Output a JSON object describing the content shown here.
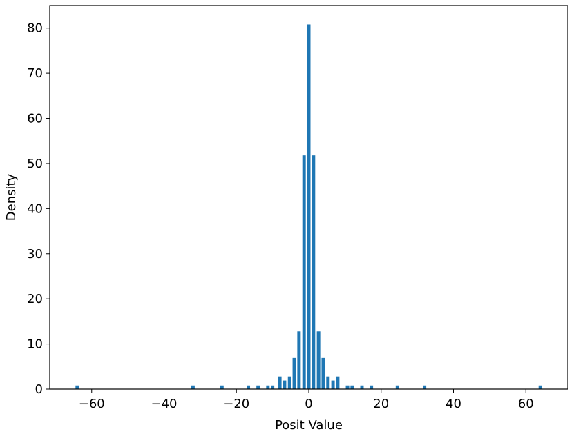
{
  "chart_data": {
    "type": "bar",
    "xlabel": "Posit Value",
    "ylabel": "Density",
    "color": "#1f77b4",
    "x": [
      -64,
      -32,
      -24,
      -16.7,
      -14,
      -11.3,
      -10,
      -8,
      -6.7,
      -5.3,
      -4,
      -2.7,
      -1.3,
      0,
      1.3,
      2.7,
      4,
      5.3,
      6.7,
      8,
      10.7,
      12,
      14.7,
      17.3,
      24.5,
      32,
      64
    ],
    "values": [
      0.8,
      0.8,
      0.8,
      0.8,
      0.8,
      0.8,
      0.8,
      2.8,
      1.9,
      2.8,
      6.9,
      12.8,
      51.8,
      80.8,
      51.8,
      12.8,
      6.9,
      2.8,
      1.9,
      2.8,
      0.8,
      0.8,
      0.8,
      0.8,
      0.8,
      0.8,
      0.8
    ],
    "xlim": [
      -71.6,
      71.6
    ],
    "ylim": [
      0,
      85
    ],
    "xticks": [
      {
        "value": -60,
        "label": "−60"
      },
      {
        "value": -40,
        "label": "−40"
      },
      {
        "value": -20,
        "label": "−20"
      },
      0,
      20,
      40,
      60
    ],
    "yticks": [
      0,
      10,
      20,
      30,
      40,
      50,
      60,
      70,
      80
    ]
  }
}
